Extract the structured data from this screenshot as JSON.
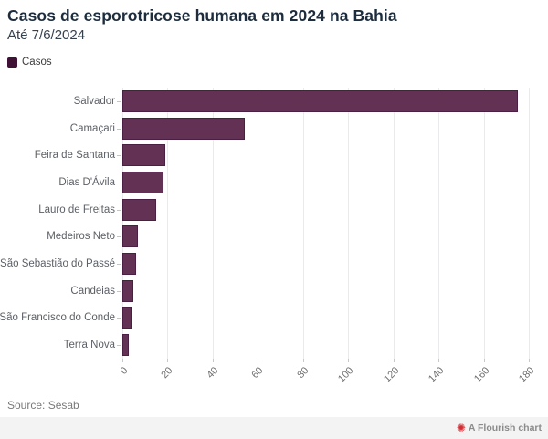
{
  "header": {
    "title": "Casos de esporotricose humana em 2024 na Bahia",
    "subtitle": "Até 7/6/2024"
  },
  "legend": {
    "items": [
      {
        "label": "Casos",
        "color": "#3e1135"
      }
    ]
  },
  "chart_data": {
    "type": "bar",
    "orientation": "horizontal",
    "title": "Casos de esporotricose humana em 2024 na Bahia",
    "subtitle": "Até 7/6/2024",
    "series_name": "Casos",
    "categories": [
      "Salvador",
      "Camaçari",
      "Feira de Santana",
      "Dias D'Ávila",
      "Lauro de Freitas",
      "Medeiros Neto",
      "São Sebastião do Passé",
      "Candeias",
      "São Francisco do Conde",
      "Terra Nova"
    ],
    "values": [
      175,
      54,
      19,
      18,
      15,
      7,
      6,
      5,
      4,
      3
    ],
    "xlabel": "",
    "ylabel": "",
    "xlim": [
      0,
      180
    ],
    "x_ticks": [
      0,
      20,
      40,
      60,
      80,
      100,
      120,
      140,
      160,
      180
    ],
    "grid": true,
    "legend_position": "top-left",
    "bar_color": "#633153",
    "bar_border_color": "#4b1e43"
  },
  "footer": {
    "source": "Source: Sesab",
    "badge": {
      "icon": "flourish-flower",
      "glyph": "✺",
      "label": "A Flourish chart"
    }
  }
}
